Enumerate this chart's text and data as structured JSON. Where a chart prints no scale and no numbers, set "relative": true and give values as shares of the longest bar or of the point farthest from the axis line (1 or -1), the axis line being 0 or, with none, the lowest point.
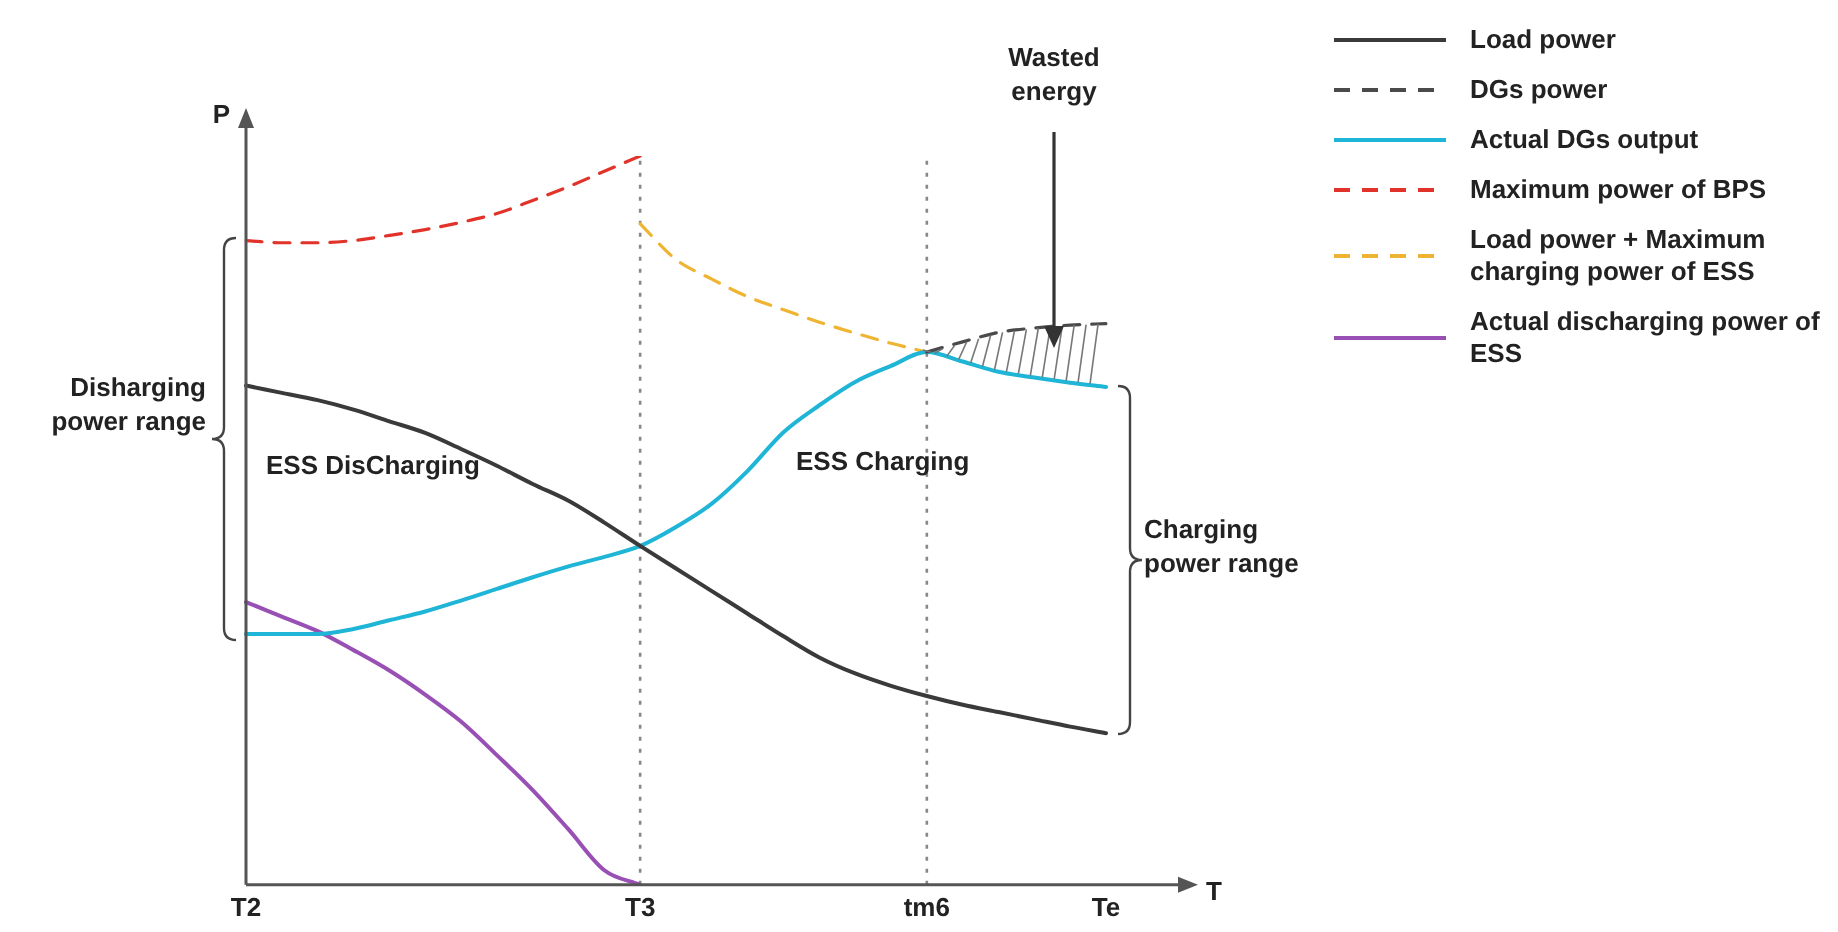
{
  "chart_data": {
    "type": "line",
    "relative": true,
    "xlabel": "T",
    "ylabel": "P",
    "legend": "right",
    "categories": [
      "T2",
      null,
      null,
      null,
      null,
      null,
      null,
      null,
      null,
      null,
      null,
      "T3",
      null,
      null,
      null,
      null,
      null,
      null,
      null,
      "tm6",
      null,
      null,
      null,
      null,
      "Te"
    ],
    "series": [
      {
        "name": "Load power",
        "color": "#3a3a3a",
        "line_style": "solid",
        "values": [
          0.685,
          0.675,
          0.665,
          0.652,
          0.636,
          0.62,
          0.598,
          0.575,
          0.55,
          0.527,
          0.497,
          0.465,
          0.434,
          0.403,
          0.372,
          0.341,
          0.312,
          0.29,
          0.273,
          0.259,
          0.247,
          0.237,
          0.227,
          0.217,
          0.208
        ]
      },
      {
        "name": "DGs power",
        "color": "#4a4a4a",
        "line_style": "dashed",
        "values": [
          null,
          null,
          null,
          null,
          null,
          null,
          null,
          null,
          null,
          null,
          null,
          null,
          null,
          null,
          null,
          null,
          null,
          null,
          null,
          0.731,
          0.745,
          0.758,
          0.764,
          0.768,
          0.77
        ]
      },
      {
        "name": "Actual DGs output",
        "color": "#1fb5d6",
        "line_style": "solid",
        "values": [
          0.344,
          0.344,
          0.344,
          0.351,
          0.363,
          0.375,
          0.39,
          0.406,
          0.422,
          0.437,
          0.45,
          0.465,
          0.491,
          0.523,
          0.568,
          0.621,
          0.658,
          0.69,
          0.712,
          0.731,
          0.718,
          0.704,
          0.696,
          0.689,
          0.683
        ]
      },
      {
        "name": "Maximum power of BPS",
        "color": "#e2332b",
        "line_style": "dashed",
        "values": [
          0.884,
          0.881,
          0.881,
          0.884,
          0.891,
          0.899,
          0.909,
          0.921,
          0.939,
          0.958,
          0.979,
          1.0,
          null,
          null,
          null,
          null,
          null,
          null,
          null,
          null,
          null,
          null,
          null,
          null,
          null
        ]
      },
      {
        "name": "Load power + Maximum charging power of ESS",
        "color": "#efb431",
        "line_style": "dashed",
        "values": [
          null,
          null,
          null,
          null,
          null,
          null,
          null,
          null,
          null,
          null,
          null,
          0.907,
          0.858,
          0.831,
          0.807,
          0.789,
          0.772,
          0.757,
          0.743,
          0.731,
          null,
          null,
          null,
          null,
          null
        ]
      },
      {
        "name": "Actual  discharging power of ESS",
        "color": "#9950b4",
        "line_style": "solid",
        "values": [
          0.388,
          0.368,
          0.348,
          0.322,
          0.294,
          0.261,
          0.224,
          0.178,
          0.13,
          0.076,
          0.02,
          0,
          null,
          null,
          null,
          null,
          null,
          null,
          null,
          null,
          null,
          null,
          null,
          null,
          null
        ]
      }
    ],
    "ref_lines": [
      {
        "axis": "x",
        "value": "T3",
        "color": "#888888",
        "line_style": "dotted"
      },
      {
        "axis": "x",
        "value": "tm6",
        "color": "#888888",
        "line_style": "dotted"
      }
    ],
    "annotations": [
      "Disharging power range",
      "Charging power range",
      "Wasted energy",
      "ESS DisCharging",
      "ESS Charging"
    ]
  }
}
